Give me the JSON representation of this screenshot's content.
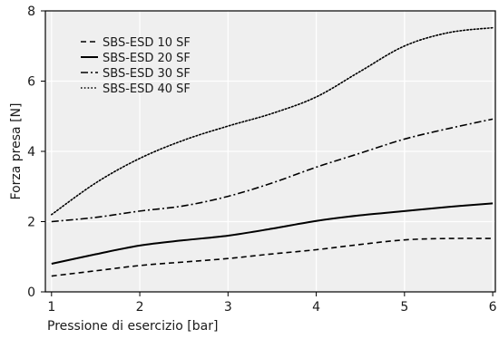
{
  "chart_data": {
    "type": "line",
    "title": "",
    "xlabel": "Pressione di esercizio [bar]",
    "ylabel": "Forza presa [N]",
    "xlim": [
      0.93,
      6.03
    ],
    "ylim": [
      0,
      8
    ],
    "xticks": [
      1,
      2,
      3,
      4,
      5,
      6
    ],
    "yticks": [
      0,
      2,
      4,
      6,
      8
    ],
    "grid": true,
    "legend_position": "top-left",
    "colors": {
      "plot_background": "#efefef",
      "grid": "#ffffff",
      "line": "#000000"
    },
    "series": [
      {
        "name": "SBS-ESD 10 SF",
        "style": "dashed",
        "x": [
          1,
          1.5,
          2,
          2.5,
          3,
          3.5,
          4,
          4.5,
          5,
          5.5,
          6
        ],
        "y": [
          0.45,
          0.6,
          0.75,
          0.85,
          0.95,
          1.08,
          1.2,
          1.35,
          1.48,
          1.52,
          1.52
        ]
      },
      {
        "name": "SBS-ESD 20 SF",
        "style": "solid",
        "x": [
          1,
          1.5,
          2,
          2.5,
          3,
          3.5,
          4,
          4.5,
          5,
          5.5,
          6
        ],
        "y": [
          0.8,
          1.07,
          1.32,
          1.47,
          1.6,
          1.8,
          2.02,
          2.18,
          2.3,
          2.42,
          2.52
        ]
      },
      {
        "name": "SBS-ESD 30 SF",
        "style": "dashdot",
        "x": [
          1,
          1.5,
          2,
          2.5,
          3,
          3.5,
          4,
          4.5,
          5,
          5.5,
          6
        ],
        "y": [
          2.0,
          2.12,
          2.3,
          2.45,
          2.72,
          3.1,
          3.55,
          3.95,
          4.35,
          4.65,
          4.92
        ]
      },
      {
        "name": "SBS-ESD 40 SF",
        "style": "dotted",
        "x": [
          1,
          1.5,
          2,
          2.5,
          3,
          3.5,
          4,
          4.5,
          5,
          5.5,
          6
        ],
        "y": [
          2.2,
          3.1,
          3.8,
          4.32,
          4.72,
          5.08,
          5.55,
          6.28,
          7.0,
          7.38,
          7.52
        ]
      }
    ]
  }
}
